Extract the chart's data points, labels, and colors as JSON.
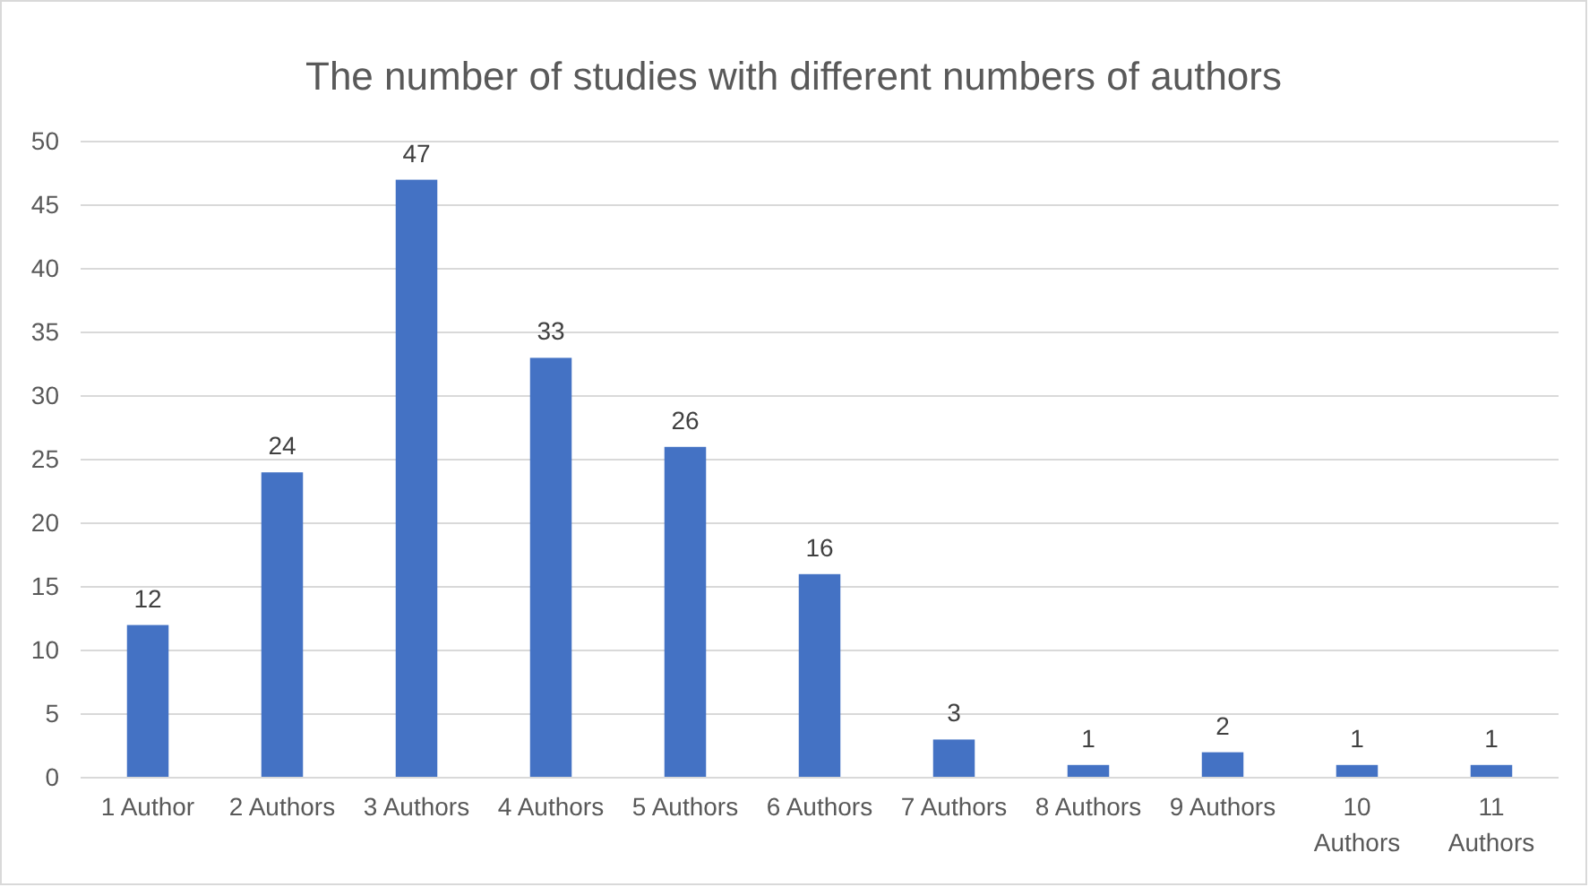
{
  "chart_data": {
    "type": "bar",
    "title": "The number of studies with different numbers of authors",
    "categories": [
      "1 Author",
      "2 Authors",
      "3 Authors",
      "4 Authors",
      "5 Authors",
      "6 Authors",
      "7 Authors",
      "8 Authors",
      "9 Authors",
      "10 Authors",
      "11 Authors"
    ],
    "values": [
      12,
      24,
      47,
      33,
      26,
      16,
      3,
      1,
      2,
      1,
      1
    ],
    "color": "#4472c4",
    "ylim": [
      0,
      50
    ],
    "yticks": [
      0,
      5,
      10,
      15,
      20,
      25,
      30,
      35,
      40,
      45,
      50
    ],
    "grid": "y",
    "data_labels": true
  }
}
